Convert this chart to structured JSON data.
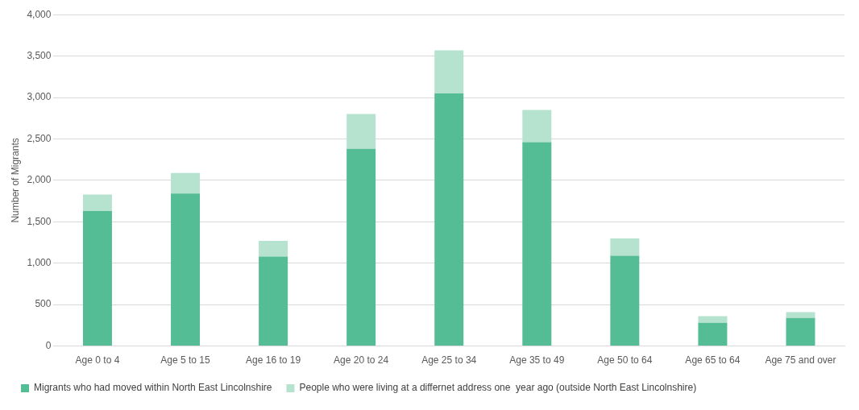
{
  "chart_data": {
    "type": "bar",
    "stacked": true,
    "ylabel": "Number of Migrants",
    "categories": [
      "Age 0 to 4",
      "Age 5 to 15",
      "Age 16 to 19",
      "Age 20 to 24",
      "Age 25 to 34",
      "Age 35 to 49",
      "Age 50 to 64",
      "Age 65 to 64",
      "Age 75 and over"
    ],
    "series": [
      {
        "name": "Migrants who had moved within North East Lincolnshire",
        "color": "#55bd95",
        "values": [
          1630,
          1840,
          1080,
          2380,
          3050,
          2460,
          1090,
          280,
          340
        ]
      },
      {
        "name": "People who were living at a differnet address one  year ago (outside North East Lincolnshire)",
        "color": "#b5e3d0",
        "values": [
          200,
          250,
          190,
          420,
          520,
          390,
          210,
          80,
          70
        ]
      }
    ],
    "ylim": [
      0,
      4000
    ],
    "yticks": [
      {
        "value": 0,
        "label": "0"
      },
      {
        "value": 500,
        "label": "500"
      },
      {
        "value": 1000,
        "label": "1,000"
      },
      {
        "value": 1500,
        "label": "1,500"
      },
      {
        "value": 2000,
        "label": "2,000"
      },
      {
        "value": 2500,
        "label": "2,500"
      },
      {
        "value": 3000,
        "label": "3,000"
      },
      {
        "value": 3500,
        "label": "3,500"
      },
      {
        "value": 4000,
        "label": "4,000"
      }
    ],
    "grid": "y",
    "legend": "bottom"
  }
}
